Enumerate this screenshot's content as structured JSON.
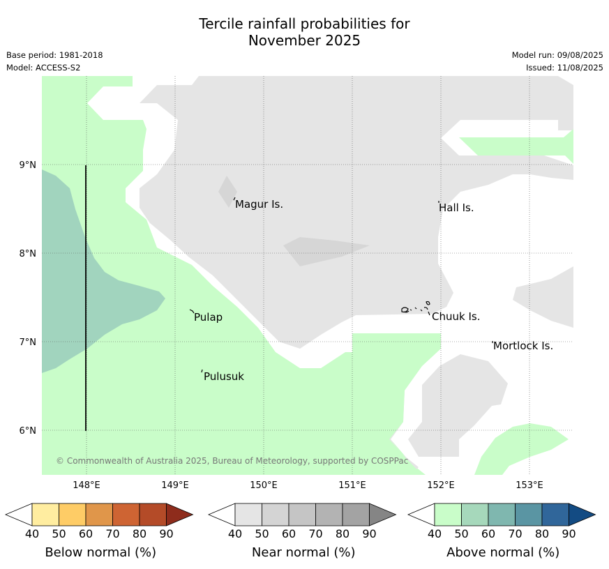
{
  "title": {
    "line1": "Tercile rainfall probabilities for",
    "line2": "November 2025"
  },
  "meta": {
    "base_period": "Base period: 1981-2018",
    "model": "Model: ACCESS-S2",
    "model_run": "Model run: 09/08/2025",
    "issued": "Issued: 11/08/2025"
  },
  "map": {
    "lon_ticks": [
      "148°E",
      "149°E",
      "150°E",
      "151°E",
      "152°E",
      "153°E"
    ],
    "lat_ticks": [
      "9°N",
      "8°N",
      "7°N",
      "6°N"
    ],
    "places": [
      "Magur Is.",
      "Hall Is.",
      "Pulap",
      "Chuuk Is.",
      "Mortlock Is.",
      "Pulusuk"
    ],
    "copyright": "© Commonwealth of Australia 2025, Bureau of Meteorology, supported by COSPPac",
    "colors": {
      "above_50": "#c9fdc9",
      "above_60": "#a1d4be",
      "near_50": "#e5e5e5",
      "near_60": "#d6d6d6",
      "land": "#000000"
    }
  },
  "colorbars": [
    {
      "label": "Below normal (%)",
      "ticks": [
        "40",
        "50",
        "60",
        "70",
        "80",
        "90"
      ],
      "colors": [
        "#ffeda0",
        "#fecc66",
        "#e0964a",
        "#ce6433",
        "#b44b28",
        "#8e2c1c"
      ]
    },
    {
      "label": "Near normal (%)",
      "ticks": [
        "40",
        "50",
        "60",
        "70",
        "80",
        "90"
      ],
      "colors": [
        "#e5e5e5",
        "#d4d4d4",
        "#c5c5c5",
        "#b3b3b3",
        "#a3a3a3",
        "#858585"
      ]
    },
    {
      "label": "Above normal (%)",
      "ticks": [
        "40",
        "50",
        "60",
        "70",
        "80",
        "90"
      ],
      "colors": [
        "#c9fdc9",
        "#a6d8bb",
        "#7fb7af",
        "#5a95a3",
        "#30669a",
        "#134b83"
      ]
    }
  ]
}
